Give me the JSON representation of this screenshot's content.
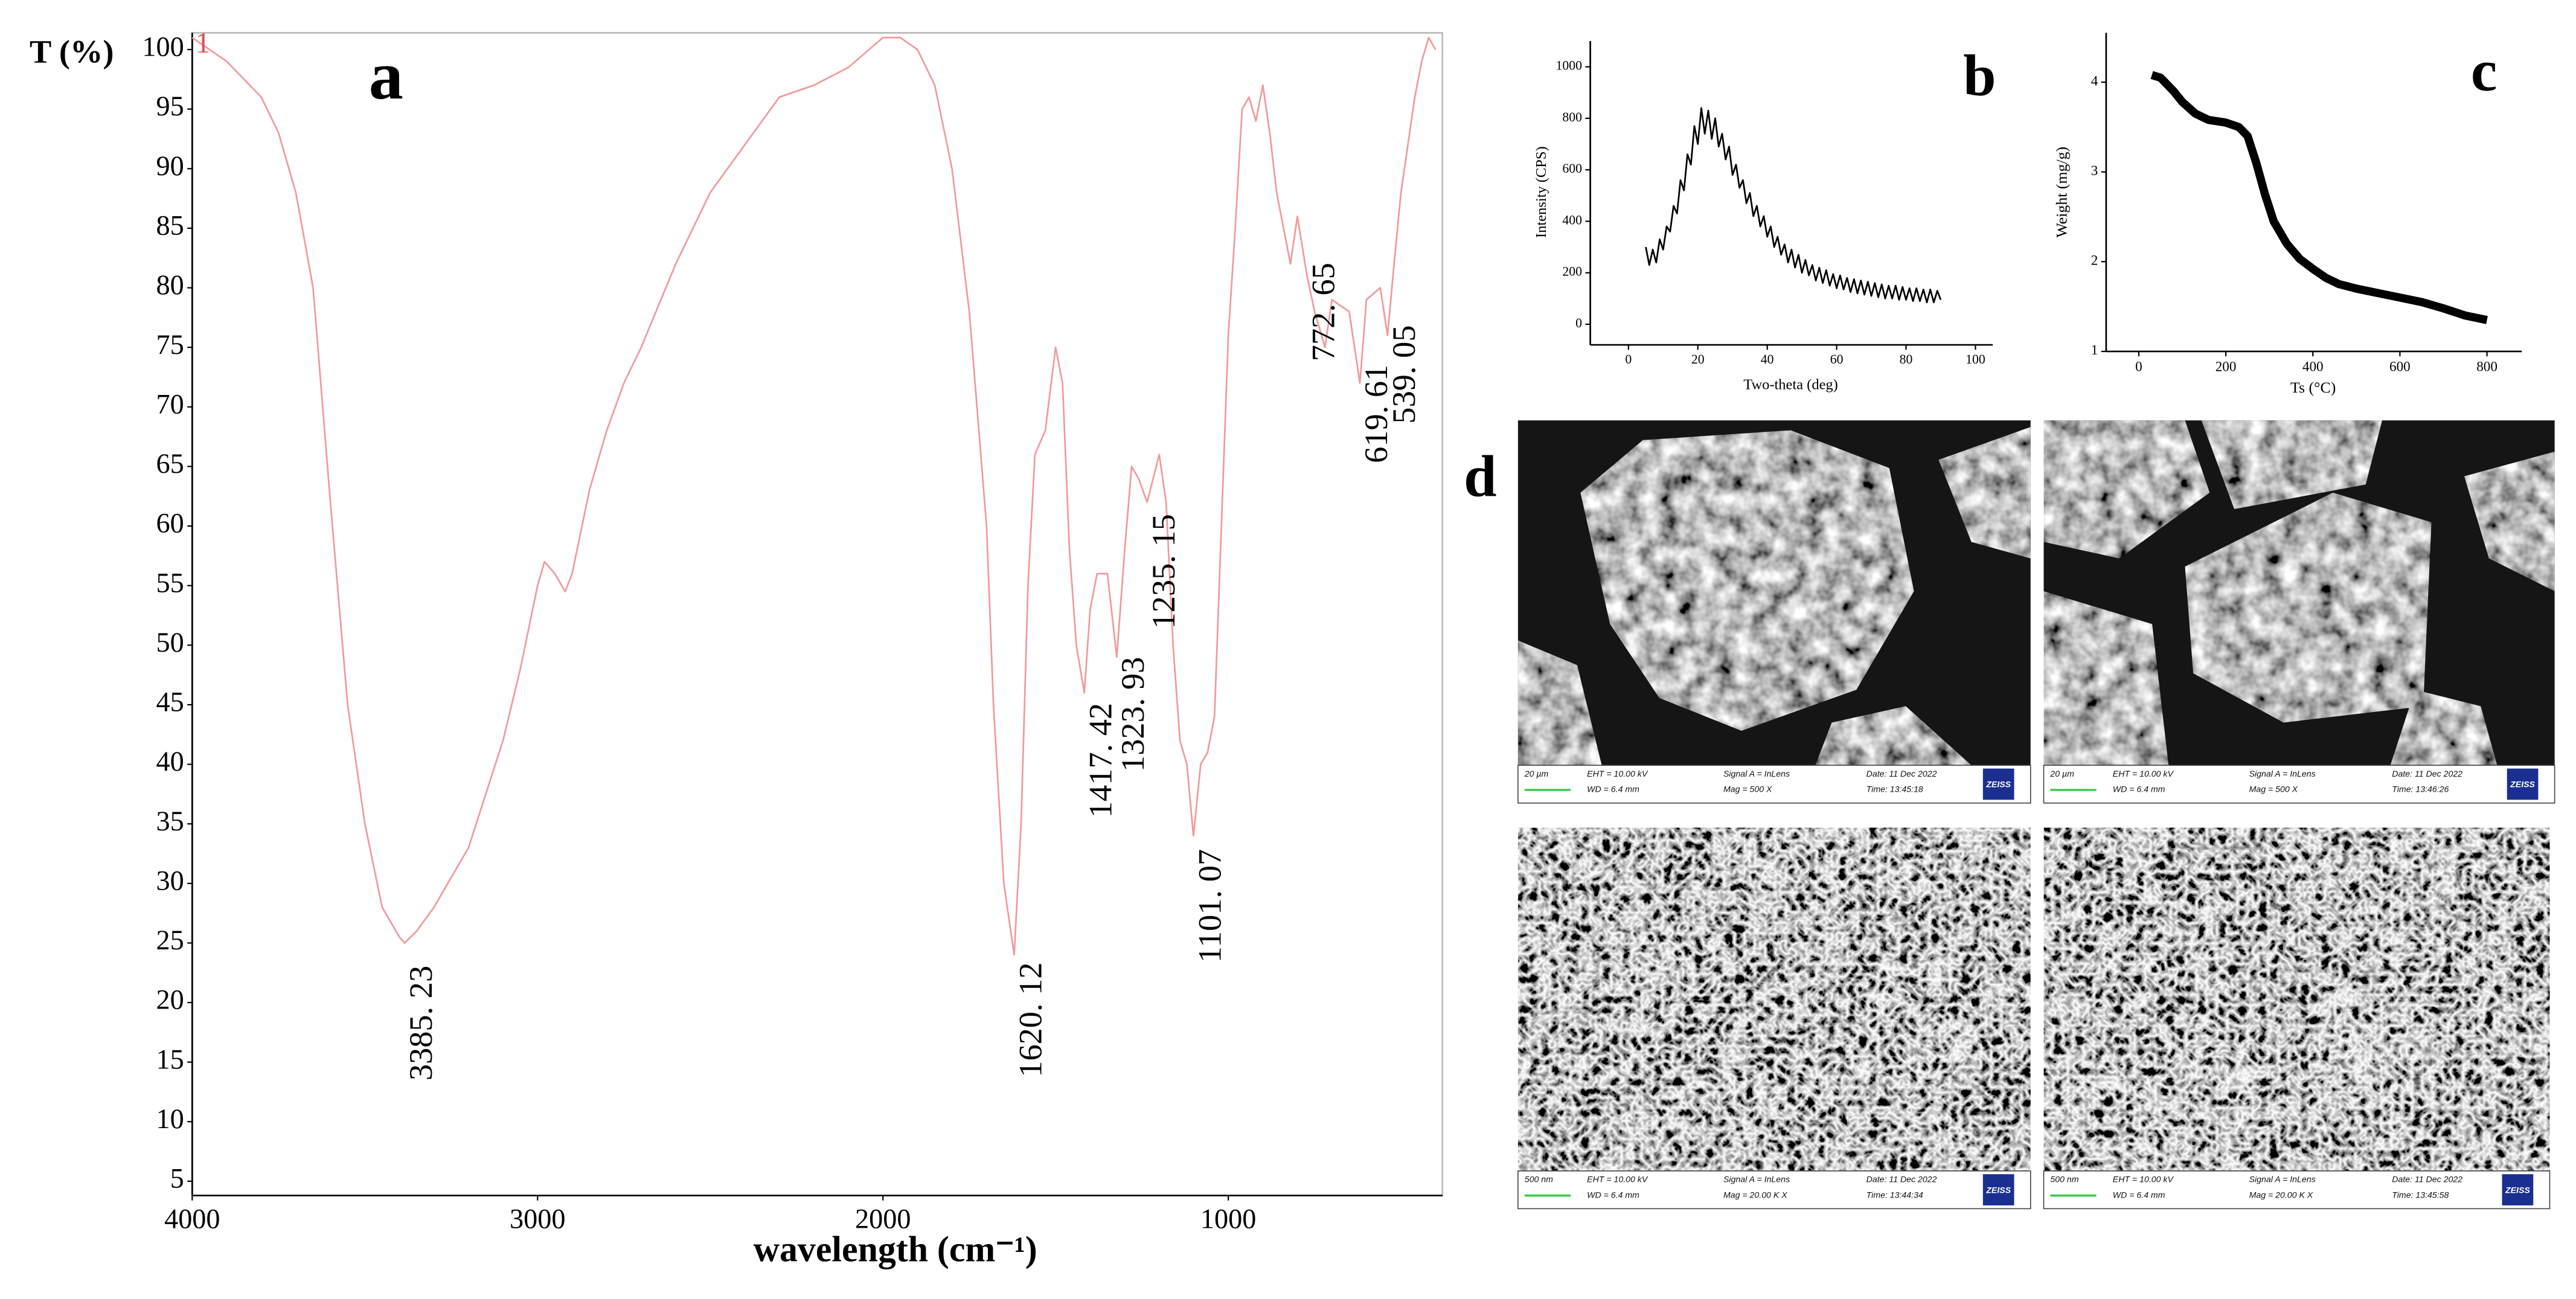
{
  "chart_data": [
    {
      "type": "line",
      "panel_label": "a",
      "x_label": "wavelength (cm⁻¹)",
      "y_label": "T (%)",
      "xlim": [
        4000,
        380
      ],
      "ylim": [
        3.8,
        101.4
      ],
      "xticks": [
        4000,
        3000,
        2000,
        1000
      ],
      "yticks": [
        5,
        10,
        15,
        20,
        25,
        30,
        35,
        40,
        45,
        50,
        55,
        60,
        65,
        70,
        75,
        80,
        85,
        90,
        95,
        100
      ],
      "x": [
        4000,
        3900,
        3800,
        3750,
        3700,
        3650,
        3600,
        3550,
        3500,
        3450,
        3400,
        3385,
        3350,
        3300,
        3200,
        3100,
        3050,
        3000,
        2980,
        2950,
        2920,
        2900,
        2850,
        2800,
        2750,
        2700,
        2600,
        2500,
        2400,
        2350,
        2300,
        2200,
        2100,
        2000,
        1950,
        1900,
        1850,
        1800,
        1750,
        1700,
        1680,
        1650,
        1620,
        1600,
        1580,
        1560,
        1530,
        1500,
        1480,
        1460,
        1440,
        1417,
        1400,
        1380,
        1350,
        1323,
        1300,
        1280,
        1260,
        1235,
        1200,
        1180,
        1160,
        1140,
        1120,
        1101,
        1080,
        1060,
        1040,
        1020,
        1000,
        980,
        960,
        940,
        920,
        900,
        880,
        860,
        820,
        800,
        772,
        750,
        720,
        700,
        650,
        619,
        600,
        560,
        539,
        520,
        500,
        460,
        440,
        420,
        400
      ],
      "series": [
        {
          "name": "1",
          "color": "#f29a9a",
          "values": [
            101,
            99,
            96,
            93,
            88,
            80,
            62,
            45,
            35,
            28,
            25.5,
            25,
            26,
            28,
            33,
            42,
            48,
            55,
            57,
            56,
            54.5,
            56,
            63,
            68,
            72,
            75,
            82,
            88,
            92,
            94,
            96,
            97,
            98.5,
            101,
            101,
            100,
            97,
            90,
            78,
            60,
            45,
            30,
            24,
            35,
            55,
            66,
            68,
            75,
            72,
            58,
            50,
            46,
            53,
            56,
            56,
            49,
            58,
            65,
            64,
            62,
            66,
            62,
            50,
            42,
            40,
            34,
            40,
            41,
            44,
            60,
            76,
            85,
            95,
            96,
            94,
            97,
            93,
            88,
            82,
            86,
            81,
            78,
            75,
            79,
            78,
            72,
            79,
            80,
            76,
            82,
            88,
            96,
            99,
            101,
            100
          ]
        }
      ],
      "annotations": [
        {
          "x": 3385.23,
          "label": "3385. 23"
        },
        {
          "x": 1620.12,
          "label": "1620. 12"
        },
        {
          "x": 1417.42,
          "label": "1417. 42"
        },
        {
          "x": 1323.93,
          "label": "1323. 93"
        },
        {
          "x": 1235.15,
          "label": "1235. 15"
        },
        {
          "x": 1101.07,
          "label": "1101. 07"
        },
        {
          "x": 772.65,
          "label": "772. 65"
        },
        {
          "x": 619.61,
          "label": "619. 61"
        },
        {
          "x": 539.05,
          "label": "539. 05"
        }
      ]
    },
    {
      "type": "line",
      "panel_label": "b",
      "x_label": "Two-theta (deg)",
      "y_label": "Intensity (CPS)",
      "xlim": [
        -11,
        105
      ],
      "ylim": [
        -80,
        1100
      ],
      "xticks": [
        0,
        20,
        40,
        60,
        80,
        100
      ],
      "yticks": [
        0,
        200,
        400,
        600,
        800,
        1000
      ],
      "x": [
        5,
        6,
        7,
        8,
        9,
        10,
        11,
        12,
        13,
        14,
        15,
        16,
        17,
        18,
        19,
        20,
        21,
        22,
        23,
        24,
        25,
        26,
        27,
        28,
        29,
        30,
        31,
        32,
        33,
        34,
        35,
        36,
        37,
        38,
        39,
        40,
        41,
        42,
        43,
        44,
        45,
        46,
        47,
        48,
        49,
        50,
        51,
        52,
        53,
        54,
        55,
        56,
        57,
        58,
        59,
        60,
        61,
        62,
        63,
        64,
        65,
        66,
        67,
        68,
        69,
        70,
        71,
        72,
        73,
        74,
        75,
        76,
        77,
        78,
        79,
        80,
        81,
        82,
        83,
        84,
        85,
        86,
        87,
        88,
        89,
        90
      ],
      "series": [
        {
          "name": "Intensity",
          "color": "#000000",
          "values": [
            300,
            230,
            290,
            240,
            330,
            290,
            380,
            360,
            460,
            430,
            560,
            520,
            660,
            620,
            770,
            700,
            840,
            740,
            830,
            720,
            800,
            690,
            740,
            640,
            690,
            580,
            620,
            530,
            560,
            470,
            510,
            420,
            460,
            380,
            420,
            340,
            380,
            300,
            340,
            270,
            310,
            240,
            290,
            220,
            270,
            200,
            250,
            190,
            230,
            170,
            220,
            160,
            210,
            150,
            195,
            140,
            190,
            135,
            180,
            125,
            175,
            120,
            170,
            115,
            165,
            110,
            160,
            105,
            155,
            100,
            150,
            100,
            150,
            95,
            145,
            95,
            140,
            90,
            140,
            90,
            135,
            85,
            135,
            85,
            130,
            95
          ]
        }
      ]
    },
    {
      "type": "line",
      "panel_label": "c",
      "x_label": "Ts (°C)",
      "y_label": "Weight (mg/g)",
      "xlim": [
        -75,
        880
      ],
      "ylim": [
        1,
        4.55
      ],
      "xticks": [
        0,
        200,
        400,
        600,
        800
      ],
      "yticks": [
        1,
        2,
        3,
        4
      ],
      "x": [
        30,
        50,
        80,
        100,
        130,
        160,
        200,
        230,
        250,
        270,
        290,
        310,
        340,
        370,
        400,
        430,
        460,
        500,
        550,
        600,
        650,
        700,
        750,
        800
      ],
      "series": [
        {
          "name": "Weight",
          "color": "#000000",
          "values": [
            4.08,
            4.05,
            3.9,
            3.78,
            3.65,
            3.58,
            3.55,
            3.5,
            3.4,
            3.1,
            2.75,
            2.45,
            2.2,
            2.03,
            1.92,
            1.82,
            1.75,
            1.7,
            1.65,
            1.6,
            1.55,
            1.48,
            1.4,
            1.35
          ]
        }
      ]
    }
  ],
  "sem_panel": {
    "panel_label": "d",
    "images": [
      {
        "scale": "20 µm",
        "eht": "EHT = 10.00 kV",
        "signal": "Signal A = InLens",
        "date": "Date: 11 Dec 2022",
        "wd": "WD =  6.4 mm",
        "mag": "Mag =    500 X",
        "time": "Time: 13:45:18",
        "logo": "ZEISS"
      },
      {
        "scale": "20 µm",
        "eht": "EHT = 10.00 kV",
        "signal": "Signal A = InLens",
        "date": "Date: 11 Dec 2022",
        "wd": "WD =  6.4 mm",
        "mag": "Mag =    500 X",
        "time": "Time: 13:46:26",
        "logo": "ZEISS"
      },
      {
        "scale": "500 nm",
        "eht": "EHT = 10.00 kV",
        "signal": "Signal A = InLens",
        "date": "Date: 11 Dec 2022",
        "wd": "WD =  6.4 mm",
        "mag": "Mag =  20.00 K X",
        "time": "Time: 13:44:34",
        "logo": "ZEISS"
      },
      {
        "scale": "500 nm",
        "eht": "EHT = 10.00 kV",
        "signal": "Signal A = InLens",
        "date": "Date: 11 Dec 2022",
        "wd": "WD =  6.4 mm",
        "mag": "Mag =  20.00 K X",
        "time": "Time: 13:45:58",
        "logo": "ZEISS"
      }
    ]
  }
}
